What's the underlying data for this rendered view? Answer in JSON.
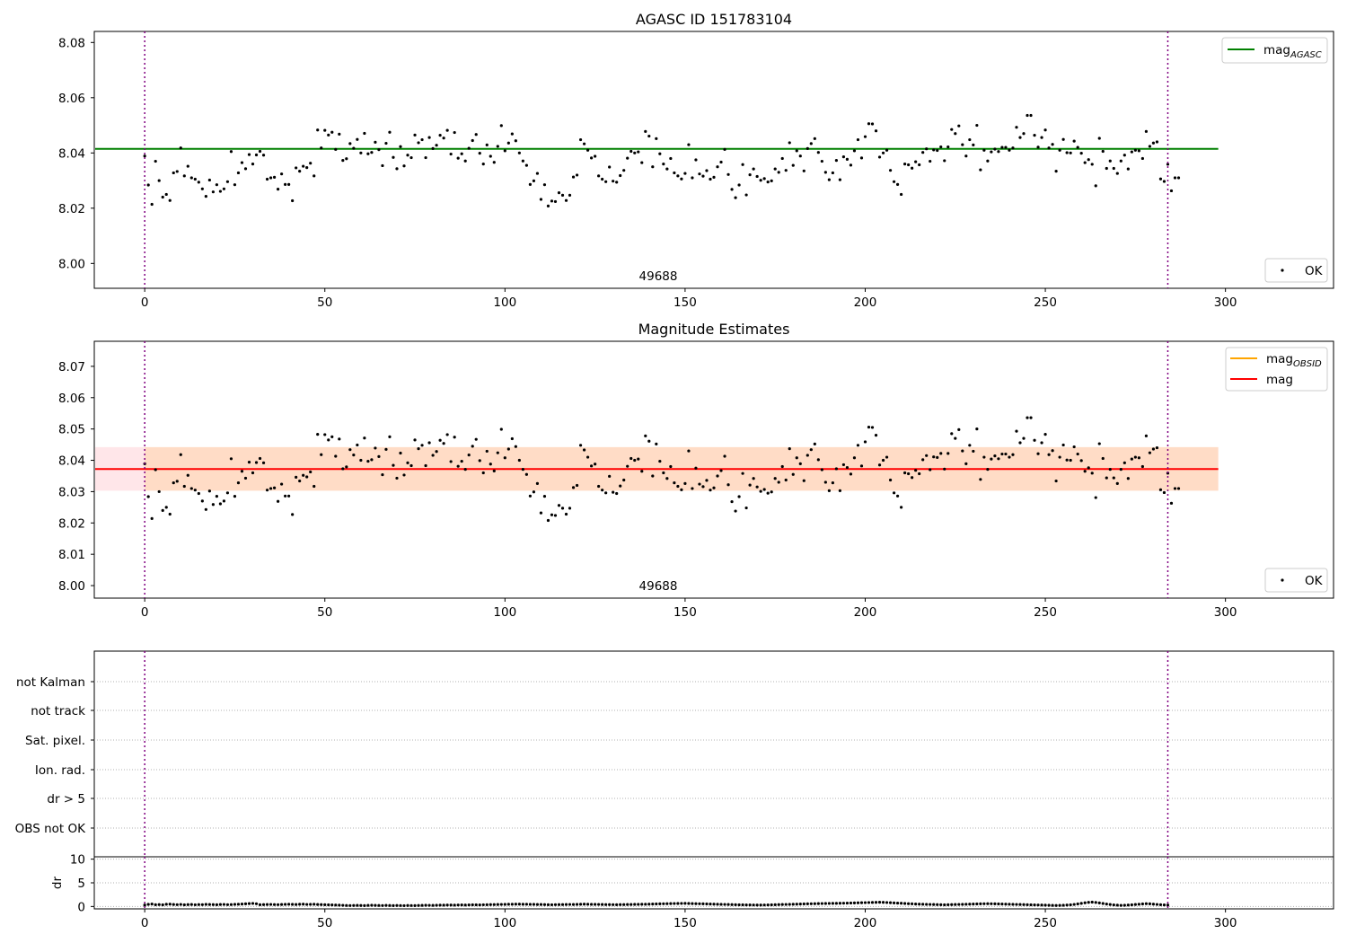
{
  "chart_data": [
    {
      "type": "scatter",
      "title": "AGASC ID 151783104",
      "xlabel": "",
      "ylabel": "",
      "xlim": [
        -14,
        330
      ],
      "ylim": [
        7.991,
        8.084
      ],
      "xticks": [
        "0",
        "50",
        "100",
        "150",
        "200",
        "250",
        "300"
      ],
      "yticks": [
        "8.00",
        "8.02",
        "8.04",
        "8.06",
        "8.08"
      ],
      "grid": false,
      "legend_upper": {
        "placement": "top-right",
        "entries": [
          {
            "label": "mag",
            "sub": "AGASC",
            "color": "#008000",
            "kind": "line"
          }
        ]
      },
      "legend_lower": {
        "placement": "bottom-right",
        "entries": [
          {
            "label": "OK",
            "color": "#000000",
            "kind": "marker"
          }
        ]
      },
      "annotation": "49688",
      "series": [
        {
          "name": "OK",
          "color": "#000000",
          "ref": "mag_points"
        },
        {
          "name": "mag_AGASC",
          "color": "#008000",
          "y": 8.0415,
          "x_range": [
            -14,
            298
          ]
        }
      ],
      "vlines": {
        "x": [
          0,
          284
        ],
        "color": "#800080"
      }
    },
    {
      "type": "scatter",
      "title": "Magnitude Estimates",
      "xlabel": "",
      "ylabel": "",
      "xlim": [
        -14,
        330
      ],
      "ylim": [
        7.996,
        8.078
      ],
      "xticks": [
        "0",
        "50",
        "100",
        "150",
        "200",
        "250",
        "300"
      ],
      "yticks": [
        "8.00",
        "8.01",
        "8.02",
        "8.03",
        "8.04",
        "8.05",
        "8.06",
        "8.07"
      ],
      "grid": false,
      "legend_upper": {
        "placement": "top-right",
        "entries": [
          {
            "label": "mag",
            "sub": "OBSID",
            "color": "#ffa500",
            "kind": "line"
          },
          {
            "label": "mag",
            "sub": "",
            "color": "#ff0000",
            "kind": "line"
          }
        ]
      },
      "legend_lower": {
        "placement": "bottom-right",
        "entries": [
          {
            "label": "OK",
            "color": "#000000",
            "kind": "marker"
          }
        ]
      },
      "annotation": "49688",
      "series": [
        {
          "name": "OK",
          "color": "#000000",
          "ref": "mag_points"
        },
        {
          "name": "mag",
          "color": "#ff0000",
          "y": 8.0372,
          "x_range": [
            -14,
            298
          ]
        }
      ],
      "bands": [
        {
          "y_range": [
            8.0303,
            8.0442
          ],
          "x_range": [
            -14,
            298
          ],
          "color": "#ffb6c1",
          "opacity": 0.35
        },
        {
          "y_range": [
            8.0303,
            8.0442
          ],
          "x_range": [
            0,
            298
          ],
          "color": "#ffa500",
          "opacity": 0.15
        }
      ],
      "vlines": {
        "x": [
          0,
          284
        ],
        "color": "#800080"
      }
    },
    {
      "type": "scatter",
      "title": "",
      "xlim": [
        -14,
        330
      ],
      "categories": [
        "not Kalman",
        "not track",
        "Sat. pixel.",
        "Ion. rad.",
        "dr > 5",
        "OBS not OK"
      ],
      "grid": true,
      "vlines": {
        "x": [
          0,
          284
        ],
        "color": "#800080"
      }
    },
    {
      "type": "scatter",
      "title": "",
      "ylabel": "dr",
      "xlim": [
        -14,
        330
      ],
      "ylim": [
        -0.5,
        10.5
      ],
      "xticks": [
        "0",
        "50",
        "100",
        "150",
        "200",
        "250",
        "300"
      ],
      "yticks": [
        "0",
        "5",
        "10"
      ],
      "grid": true,
      "series": [
        {
          "name": "dr",
          "color": "#000000",
          "ref": "dr_points"
        }
      ],
      "vlines": {
        "x": [
          0,
          284
        ],
        "color": "#800080"
      }
    }
  ],
  "mag_points": [
    8.0389,
    8.0284,
    8.0214,
    8.037,
    8.03,
    8.024,
    8.025,
    8.0228,
    8.0328,
    8.0333,
    8.0418,
    8.0317,
    8.0352,
    8.031,
    8.0305,
    8.0294,
    8.027,
    8.0243,
    8.0302,
    8.0259,
    8.0285,
    8.0261,
    8.027,
    8.0296,
    8.0405,
    8.0285,
    8.0328,
    8.0365,
    8.0343,
    8.0394,
    8.036,
    8.0393,
    8.0406,
    8.0392,
    8.0305,
    8.031,
    8.0312,
    8.0269,
    8.0324,
    8.0286,
    8.0286,
    8.0227,
    8.0346,
    8.0334,
    8.0352,
    8.0347,
    8.0363,
    8.0317,
    8.0483,
    8.0418,
    8.0482,
    8.0465,
    8.0475,
    8.0413,
    8.0468,
    8.0373,
    8.0379,
    8.0434,
    8.0417,
    8.0449,
    8.04,
    8.0471,
    8.0397,
    8.0402,
    8.0439,
    8.0412,
    8.0354,
    8.0435,
    8.0475,
    8.0384,
    8.0343,
    8.0423,
    8.0353,
    8.0392,
    8.0383,
    8.0465,
    8.0437,
    8.0448,
    8.0383,
    8.0456,
    8.0416,
    8.0428,
    8.0464,
    8.0454,
    8.0482,
    8.0396,
    8.0474,
    8.0381,
    8.0397,
    8.0371,
    8.0417,
    8.0445,
    8.0467,
    8.0399,
    8.036,
    8.0429,
    8.0388,
    8.0366,
    8.0424,
    8.0499,
    8.0408,
    8.0436,
    8.0469,
    8.0444,
    8.04,
    8.0371,
    8.0355,
    8.0286,
    8.0299,
    8.0326,
    8.0232,
    8.0285,
    8.0208,
    8.0226,
    8.0224,
    8.0256,
    8.0247,
    8.0228,
    8.0247,
    8.0313,
    8.032,
    8.0448,
    8.0433,
    8.041,
    8.0382,
    8.0388,
    8.0317,
    8.0305,
    8.0296,
    8.0349,
    8.0298,
    8.0294,
    8.0318,
    8.0337,
    8.0381,
    8.0406,
    8.04,
    8.0404,
    8.0365,
    8.0478,
    8.0461,
    8.035,
    8.0452,
    8.0397,
    8.036,
    8.0342,
    8.038,
    8.0328,
    8.0317,
    8.0306,
    8.0326,
    8.043,
    8.031,
    8.0375,
    8.0324,
    8.0316,
    8.0336,
    8.0305,
    8.0312,
    8.035,
    8.0367,
    8.0413,
    8.0322,
    8.0268,
    8.0238,
    8.0284,
    8.0358,
    8.0248,
    8.0321,
    8.0342,
    8.0315,
    8.0301,
    8.0307,
    8.0295,
    8.0299,
    8.0342,
    8.033,
    8.038,
    8.0337,
    8.0437,
    8.0355,
    8.0408,
    8.0389,
    8.0335,
    8.0416,
    8.0434,
    8.0452,
    8.0402,
    8.037,
    8.033,
    8.0303,
    8.0328,
    8.0373,
    8.0303,
    8.0386,
    8.0377,
    8.0356,
    8.0408,
    8.0448,
    8.0382,
    8.0459,
    8.0506,
    8.0505,
    8.048,
    8.0385,
    8.04,
    8.041,
    8.0337,
    8.0296,
    8.0286,
    8.025,
    8.036,
    8.0357,
    8.0345,
    8.0368,
    8.0357,
    8.0402,
    8.0415,
    8.037,
    8.0411,
    8.0409,
    8.0422,
    8.0372,
    8.0422,
    8.0485,
    8.047,
    8.0498,
    8.043,
    8.0389,
    8.0448,
    8.0429,
    8.05,
    8.0339,
    8.041,
    8.0371,
    8.0404,
    8.0414,
    8.0405,
    8.042,
    8.042,
    8.041,
    8.0418,
    8.0493,
    8.0456,
    8.047,
    8.0536,
    8.0536,
    8.0464,
    8.0421,
    8.0456,
    8.0483,
    8.0418,
    8.0431,
    8.0334,
    8.041,
    8.0449,
    8.0401,
    8.04,
    8.0443,
    8.042,
    8.0399,
    8.0365,
    8.0376,
    8.0359,
    8.0281,
    8.0453,
    8.0406,
    8.0344,
    8.0371,
    8.0344,
    8.0326,
    8.0371,
    8.0392,
    8.0342,
    8.0404,
    8.041,
    8.0408,
    8.038,
    8.0478,
    8.0424,
    8.0436,
    8.044,
    8.0306,
    8.0297,
    8.0359,
    8.0263,
    8.031,
    8.031
  ],
  "dr_points": [
    0.3,
    0.45,
    0.52,
    0.38,
    0.41,
    0.35,
    0.47,
    0.5,
    0.43,
    0.39,
    0.44,
    0.36,
    0.4,
    0.42,
    0.37,
    0.41,
    0.39,
    0.45,
    0.43,
    0.4,
    0.38,
    0.42,
    0.44,
    0.39,
    0.41,
    0.46,
    0.48,
    0.52,
    0.57,
    0.61,
    0.65,
    0.58,
    0.38,
    0.4,
    0.42,
    0.44,
    0.41,
    0.39,
    0.43,
    0.46,
    0.48,
    0.45,
    0.42,
    0.47,
    0.5,
    0.44,
    0.46,
    0.48,
    0.42,
    0.4,
    0.38,
    0.35,
    0.33,
    0.3,
    0.28,
    0.25,
    0.22,
    0.2,
    0.22,
    0.24,
    0.21,
    0.19,
    0.23,
    0.26,
    0.24,
    0.22,
    0.2,
    0.23,
    0.21,
    0.19,
    0.22,
    0.2,
    0.18,
    0.21,
    0.2,
    0.19,
    0.22,
    0.24,
    0.26,
    0.25,
    0.23,
    0.27,
    0.29,
    0.28,
    0.3,
    0.31,
    0.29,
    0.32,
    0.33,
    0.31,
    0.34,
    0.35,
    0.36,
    0.34,
    0.37,
    0.38,
    0.4,
    0.41,
    0.42,
    0.44,
    0.45,
    0.47,
    0.48,
    0.5,
    0.49,
    0.47,
    0.48,
    0.46,
    0.45,
    0.43,
    0.42,
    0.4,
    0.38,
    0.37,
    0.39,
    0.4,
    0.41,
    0.42,
    0.44,
    0.43,
    0.45,
    0.47,
    0.49,
    0.48,
    0.46,
    0.45,
    0.44,
    0.42,
    0.41,
    0.4,
    0.39,
    0.38,
    0.4,
    0.41,
    0.42,
    0.43,
    0.45,
    0.46,
    0.47,
    0.48,
    0.5,
    0.52,
    0.54,
    0.56,
    0.58,
    0.6,
    0.62,
    0.63,
    0.64,
    0.65,
    0.66,
    0.64,
    0.62,
    0.6,
    0.58,
    0.56,
    0.54,
    0.52,
    0.5,
    0.48,
    0.46,
    0.44,
    0.42,
    0.4,
    0.38,
    0.36,
    0.35,
    0.34,
    0.33,
    0.32,
    0.31,
    0.3,
    0.32,
    0.34,
    0.36,
    0.38,
    0.4,
    0.42,
    0.44,
    0.46,
    0.48,
    0.5,
    0.52,
    0.54,
    0.56,
    0.58,
    0.6,
    0.62,
    0.63,
    0.64,
    0.65,
    0.66,
    0.67,
    0.68,
    0.7,
    0.72,
    0.74,
    0.76,
    0.78,
    0.8,
    0.82,
    0.84,
    0.86,
    0.88,
    0.9,
    0.88,
    0.84,
    0.8,
    0.76,
    0.72,
    0.68,
    0.64,
    0.6,
    0.56,
    0.52,
    0.5,
    0.48,
    0.46,
    0.44,
    0.42,
    0.4,
    0.38,
    0.36,
    0.38,
    0.4,
    0.42,
    0.44,
    0.46,
    0.48,
    0.5,
    0.52,
    0.54,
    0.56,
    0.58,
    0.6,
    0.58,
    0.56,
    0.54,
    0.52,
    0.5,
    0.48,
    0.46,
    0.44,
    0.42,
    0.4,
    0.38,
    0.36,
    0.34,
    0.32,
    0.3,
    0.28,
    0.26,
    0.24,
    0.22,
    0.24,
    0.26,
    0.3,
    0.36,
    0.44,
    0.54,
    0.66,
    0.78,
    0.88,
    0.92,
    0.86,
    0.76,
    0.64,
    0.52,
    0.42,
    0.34,
    0.28,
    0.24,
    0.26,
    0.3,
    0.36,
    0.42,
    0.48,
    0.54,
    0.6,
    0.56,
    0.5,
    0.44,
    0.38,
    0.34,
    0.3
  ],
  "figure": {
    "panel1_title": "AGASC ID 151783104",
    "panel2_title": "Magnitude Estimates",
    "obsid_label": "49688",
    "legend_ok": "OK",
    "flag_labels": [
      "not Kalman",
      "not track",
      "Sat. pixel.",
      "Ion. rad.",
      "dr > 5",
      "OBS not OK"
    ],
    "dr_label": "dr"
  }
}
